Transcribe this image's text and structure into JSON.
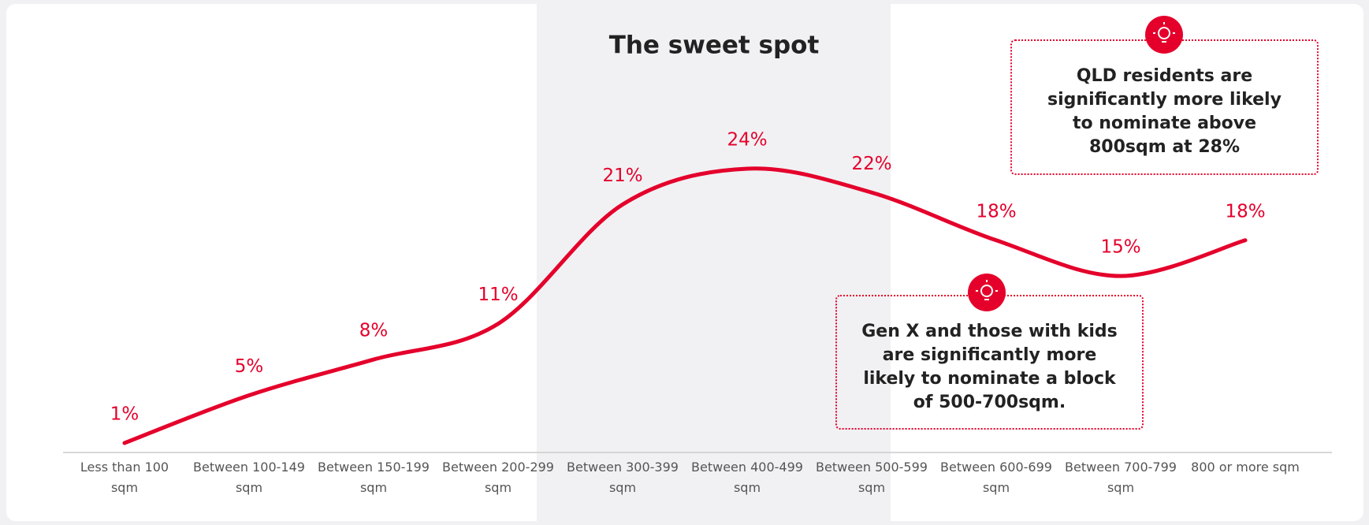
{
  "chart_data": {
    "type": "line",
    "title": "The sweet spot",
    "categories": [
      "Less than 100 sqm",
      "Between 100-149 sqm",
      "Between 150-199 sqm",
      "Between 200-299 sqm",
      "Between 300-399 sqm",
      "Between 400-499 sqm",
      "Between 500-599 sqm",
      "Between 600-699 sqm",
      "Between 700-799 sqm",
      "800 or more sqm"
    ],
    "values": [
      1,
      5,
      8,
      11,
      21,
      24,
      22,
      18,
      15,
      18
    ],
    "value_labels": [
      "1%",
      "5%",
      "8%",
      "11%",
      "21%",
      "24%",
      "22%",
      "18%",
      "15%",
      "18%"
    ],
    "color": "#e4002b",
    "annotations": [
      "QLD residents are significantly more likely to nominate above 800sqm at 28%",
      "Gen X and those with kids are significantly more likely to nominate a block of 500-700sqm."
    ]
  }
}
